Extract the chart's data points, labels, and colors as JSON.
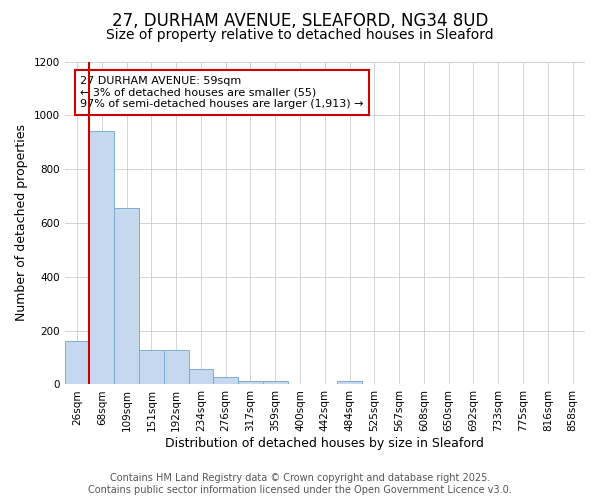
{
  "title1": "27, DURHAM AVENUE, SLEAFORD, NG34 8UD",
  "title2": "Size of property relative to detached houses in Sleaford",
  "xlabel": "Distribution of detached houses by size in Sleaford",
  "ylabel": "Number of detached properties",
  "bins": [
    "26sqm",
    "68sqm",
    "109sqm",
    "151sqm",
    "192sqm",
    "234sqm",
    "276sqm",
    "317sqm",
    "359sqm",
    "400sqm",
    "442sqm",
    "484sqm",
    "525sqm",
    "567sqm",
    "608sqm",
    "650sqm",
    "692sqm",
    "733sqm",
    "775sqm",
    "816sqm",
    "858sqm"
  ],
  "values": [
    160,
    940,
    655,
    128,
    128,
    57,
    27,
    12,
    12,
    0,
    0,
    12,
    0,
    0,
    0,
    0,
    0,
    0,
    0,
    0,
    0
  ],
  "bar_color": "#c5d8ee",
  "bar_edge_color": "#7baed4",
  "vline_color": "#cc0000",
  "annotation_text": "27 DURHAM AVENUE: 59sqm\n← 3% of detached houses are smaller (55)\n97% of semi-detached houses are larger (1,913) →",
  "annotation_box_color": "#ffffff",
  "annotation_box_edge": "#cc0000",
  "ylim": [
    0,
    1200
  ],
  "yticks": [
    0,
    200,
    400,
    600,
    800,
    1000,
    1200
  ],
  "background_color": "#ffffff",
  "grid_color": "#cccccc",
  "footer1": "Contains HM Land Registry data © Crown copyright and database right 2025.",
  "footer2": "Contains public sector information licensed under the Open Government Licence v3.0.",
  "title1_fontsize": 12,
  "title2_fontsize": 10,
  "tick_fontsize": 7.5,
  "axis_label_fontsize": 9,
  "footer_fontsize": 7
}
